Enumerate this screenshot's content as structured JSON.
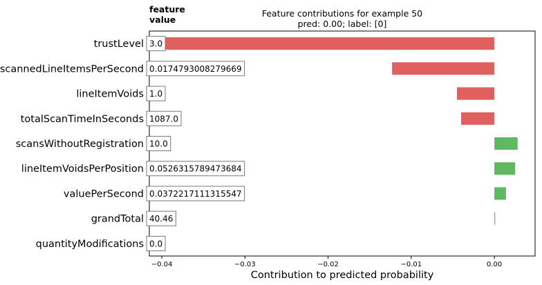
{
  "chart_data": {
    "type": "bar",
    "orientation": "horizontal",
    "title": "Feature contributions for example 50",
    "subtitle": "pred: 0.00; label: [0]",
    "value_header_line1": "feature",
    "value_header_line2": "value",
    "xlabel": "Contribution to predicted probability",
    "xlim": [
      -0.0415,
      0.0049
    ],
    "x_ticks": [
      -0.04,
      -0.03,
      -0.02,
      -0.01,
      0.0
    ],
    "x_tick_labels": [
      "−0.04",
      "−0.03",
      "−0.02",
      "−0.01",
      "0.00"
    ],
    "grid": false,
    "categories": [
      "trustLevel",
      "scannedLineItemsPerSecond",
      "lineItemVoids",
      "totalScanTimeInSeconds",
      "scansWithoutRegistration",
      "lineItemVoidsPerPosition",
      "valuePerSecond",
      "grandTotal",
      "quantityModifications"
    ],
    "feature_values": [
      "3.0",
      "0.0174793008279669",
      "1.0",
      "1087.0",
      "10.0",
      "0.0526315789473684",
      "0.0372217111315547",
      "40.46",
      "0.0"
    ],
    "values": [
      -0.0398,
      -0.0123,
      -0.0045,
      -0.004,
      0.0028,
      0.0025,
      0.0014,
      0.0001,
      0.0
    ],
    "colors": {
      "negative": "#e06060",
      "positive": "#60b860"
    }
  }
}
